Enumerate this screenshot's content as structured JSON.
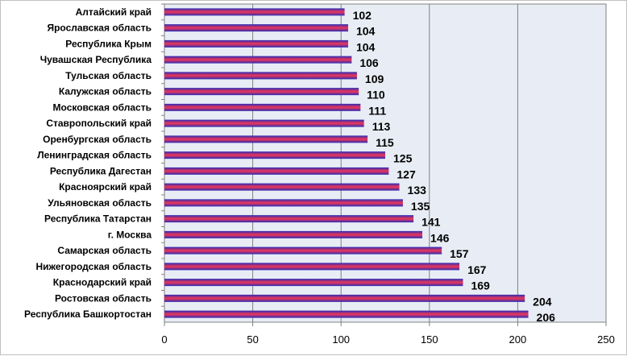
{
  "chart_data": {
    "type": "bar",
    "orientation": "horizontal",
    "title": "",
    "xlabel": "",
    "ylabel": "",
    "xlim": [
      0,
      250
    ],
    "x_ticks": [
      0,
      50,
      100,
      150,
      200,
      250
    ],
    "grid": true,
    "legend": "none",
    "categories": [
      "Алтайский край",
      "Ярославская область",
      "Республика Крым",
      "Чувашская Республика",
      "Тульская область",
      "Калужская область",
      "Московская область",
      "Ставропольский край",
      "Оренбургская область",
      "Ленинградская область",
      "Республика Дагестан",
      "Красноярский край",
      "Ульяновская область",
      "Республика Татарстан",
      "г. Москва",
      "Самарская область",
      "Нижегородская область",
      "Краснодарский край",
      "Ростовская область",
      "Республика Башкортостан"
    ],
    "values": [
      102,
      104,
      104,
      106,
      109,
      110,
      111,
      113,
      115,
      125,
      127,
      133,
      135,
      141,
      146,
      157,
      167,
      169,
      204,
      206
    ],
    "colors": {
      "plot_background": "#e8edf5",
      "bar_edge": "#2b2bb8",
      "bar_fill": "#e0355e",
      "gridline": "#808080"
    }
  }
}
